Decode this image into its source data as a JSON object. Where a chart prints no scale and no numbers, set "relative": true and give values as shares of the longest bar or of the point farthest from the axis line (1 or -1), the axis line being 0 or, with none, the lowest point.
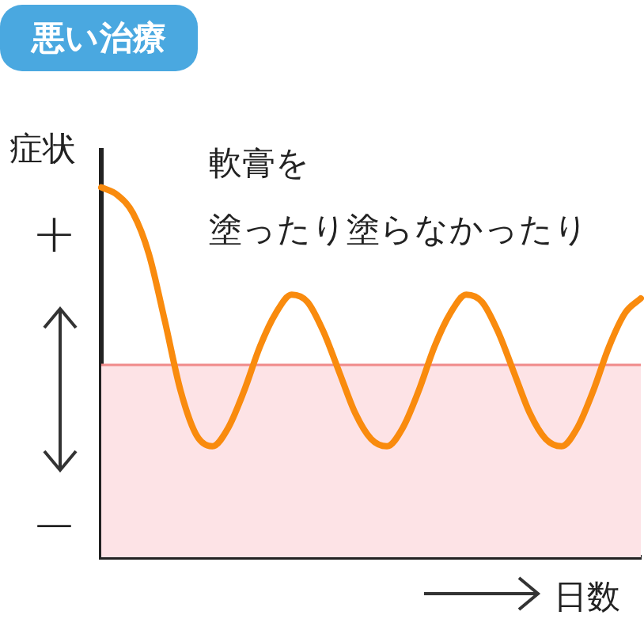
{
  "chart_data": {
    "type": "line",
    "title": "悪い治療",
    "ylabel": "症状",
    "xlabel": "日数",
    "relative": true,
    "categories": [
      null,
      null,
      null,
      null,
      null,
      null,
      null,
      null,
      null,
      null,
      null,
      null,
      null,
      null,
      null,
      null,
      null,
      null,
      null,
      null,
      null,
      null,
      null,
      null,
      null,
      null,
      null,
      null,
      null,
      null,
      null,
      null,
      null,
      null,
      null
    ],
    "series": [
      {
        "color": "#f98b0e",
        "values": [
          1.0,
          0.98,
          0.93,
          0.82,
          0.64,
          0.45,
          0.33,
          0.3,
          0.35,
          0.45,
          0.57,
          0.66,
          0.71,
          0.69,
          0.61,
          0.5,
          0.39,
          0.32,
          0.3,
          0.35,
          0.45,
          0.57,
          0.66,
          0.71,
          0.69,
          0.61,
          0.5,
          0.39,
          0.32,
          0.3,
          0.35,
          0.45,
          0.57,
          0.66,
          0.7
        ]
      }
    ],
    "bands": [
      {
        "axis": "y",
        "from": 0,
        "to": 0.52,
        "color": "#fde3e6"
      }
    ],
    "ref_lines": [
      {
        "axis": "y",
        "value": 0.52,
        "color": "#f08a8a"
      }
    ],
    "annotations": [
      "軟膏を",
      "塗ったり塗らなかったり",
      "+",
      "−"
    ],
    "marker": "none",
    "line_style": "solid",
    "grid": false,
    "legend": false
  }
}
